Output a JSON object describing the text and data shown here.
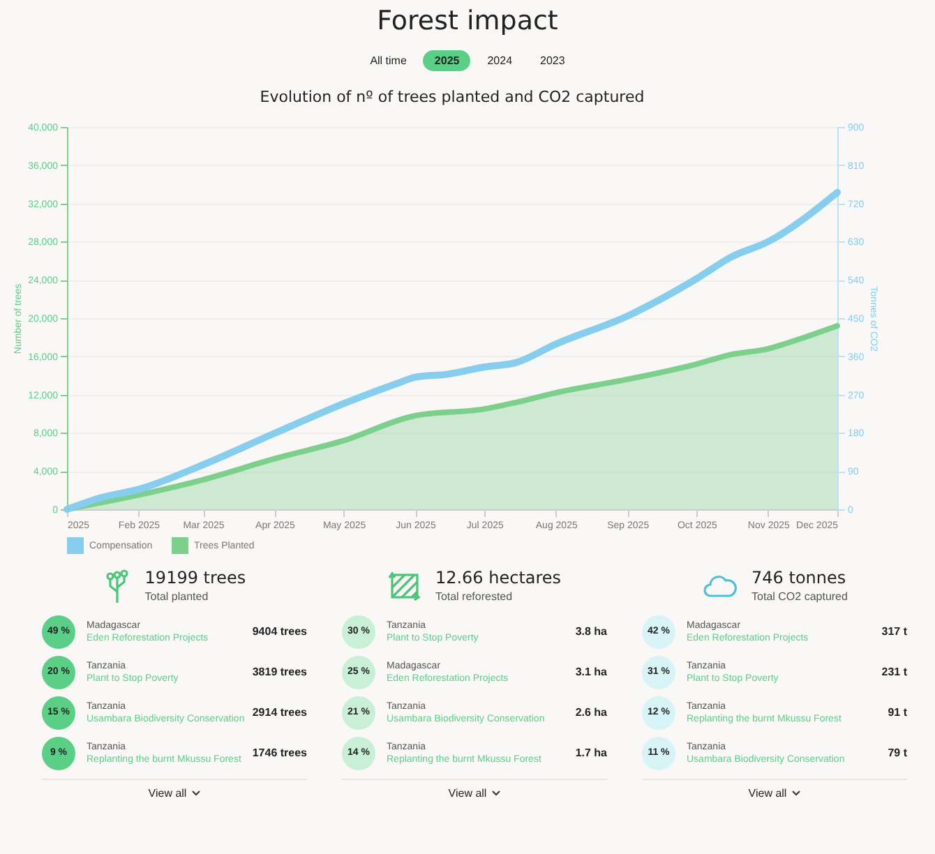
{
  "chart_data": [
    {
      "type": "other",
      "title": "Forest impact",
      "annotations": [
        "All time",
        "2025",
        "2024",
        "2023"
      ]
    },
    {
      "type": "line",
      "title": "Evolution of nº of trees planted and CO2 captured",
      "ylabel": "Number of trees",
      "y2label": "Tonnes of CO2",
      "xlim": [
        "2025-01-01",
        "2025-12-01"
      ],
      "xticks": [
        {
          "value": "2025-01",
          "label": "2025"
        },
        {
          "value": "2025-02",
          "label": "Feb 2025"
        },
        {
          "value": "2025-03",
          "label": "Mar 2025"
        },
        {
          "value": "2025-04",
          "label": "Apr 2025"
        },
        {
          "value": "2025-05",
          "label": "May 2025"
        },
        {
          "value": "2025-06",
          "label": "Jun 2025"
        },
        {
          "value": "2025-07",
          "label": "Jul 2025"
        },
        {
          "value": "2025-08",
          "label": "Aug 2025"
        },
        {
          "value": "2025-09",
          "label": "Sep 2025"
        },
        {
          "value": "2025-10",
          "label": "Oct 2025"
        },
        {
          "value": "2025-11",
          "label": "Nov 2025"
        },
        {
          "value": "2025-12",
          "label": "Dec 2025"
        }
      ],
      "ylim": [
        0,
        40000
      ],
      "yticks": [
        0,
        {
          "value": 4000,
          "label": "4,000"
        },
        {
          "value": 8000,
          "label": "8,000"
        },
        {
          "value": 12000,
          "label": "12,000"
        },
        {
          "value": 16000,
          "label": "16,000"
        },
        {
          "value": 20000,
          "label": "20,000"
        },
        {
          "value": 24000,
          "label": "24,000"
        },
        {
          "value": 28000,
          "label": "28,000"
        },
        {
          "value": 32000,
          "label": "32,000"
        },
        {
          "value": 36000,
          "label": "36,000"
        },
        {
          "value": 40000,
          "label": "40,000"
        }
      ],
      "y2lim": [
        0,
        900
      ],
      "y2ticks": [
        0,
        90,
        180,
        270,
        360,
        450,
        540,
        630,
        720,
        810,
        900
      ],
      "grid": "y",
      "legend": "bottom",
      "series": [
        {
          "name": "Compensation",
          "type": "line",
          "axis": "y2",
          "color": "#86cdee",
          "x": [
            "2025-01-01",
            "2025-01-16",
            "2025-02-01",
            "2025-03-01",
            "2025-04-01",
            "2025-05-01",
            "2025-05-24",
            "2025-06-01",
            "2025-06-15",
            "2025-07-01",
            "2025-07-15",
            "2025-08-01",
            "2025-09-01",
            "2025-10-01",
            "2025-10-16",
            "2025-11-01",
            "2025-12-01"
          ],
          "values": [
            0,
            28,
            47,
            105,
            179,
            249,
            296,
            311,
            318,
            335,
            346,
            389,
            455,
            543,
            594,
            630,
            746
          ]
        },
        {
          "name": "Trees Planted",
          "type": "area",
          "color": "#7dcf8c",
          "x": [
            "2025-01-01",
            "2025-02-01",
            "2025-03-01",
            "2025-04-01",
            "2025-05-01",
            "2025-06-01",
            "2025-07-01",
            "2025-07-15",
            "2025-08-01",
            "2025-09-01",
            "2025-10-01",
            "2025-10-16",
            "2025-11-01",
            "2025-11-08",
            "2025-12-01"
          ],
          "values": [
            0,
            1500,
            3100,
            5300,
            7200,
            9800,
            10500,
            11200,
            12200,
            13600,
            15200,
            16200,
            16800,
            17300,
            19199
          ]
        }
      ]
    },
    {
      "type": "other",
      "title": "19199 trees",
      "subtitle": "Total planted",
      "colors": [
        "#5ccf87",
        "#5ccf87",
        "#5ccf87",
        "#5ccf87"
      ],
      "annotations": [
        "49 %",
        "Madagascar",
        "Eden Reforestation Projects",
        "9404 trees",
        "20 %",
        "Tanzania",
        "Plant to Stop Poverty",
        "3819 trees",
        "15 %",
        "Tanzania",
        "Usambara Biodiversity Conservation",
        "2914 trees",
        "9 %",
        "Tanzania",
        "Replanting the burnt Mkussu Forest",
        "1746 trees",
        "View all"
      ]
    },
    {
      "type": "other",
      "title": "12.66 hectares",
      "subtitle": "Total reforested",
      "colors": [
        "#c9efd6",
        "#c9efd6",
        "#c9efd6",
        "#c9efd6"
      ],
      "annotations": [
        "30 %",
        "Tanzania",
        "Plant to Stop Poverty",
        "3.8 ha",
        "25 %",
        "Madagascar",
        "Eden Reforestation Projects",
        "3.1 ha",
        "21 %",
        "Tanzania",
        "Usambara Biodiversity Conservation",
        "2.6 ha",
        "14 %",
        "Tanzania",
        "Replanting the burnt Mkussu Forest",
        "1.7 ha",
        "View all"
      ]
    },
    {
      "type": "other",
      "title": "746 tonnes",
      "subtitle": "Total CO2 captured",
      "colors": [
        "#d8f4f7",
        "#d8f4f7",
        "#d8f4f7",
        "#d8f4f7"
      ],
      "annotations": [
        "42 %",
        "Madagascar",
        "Eden Reforestation Projects",
        "317 t",
        "31 %",
        "Tanzania",
        "Plant to Stop Poverty",
        "231 t",
        "12 %",
        "Tanzania",
        "Replanting the burnt Mkussu Forest",
        "91 t",
        "11 %",
        "Tanzania",
        "Usambara Biodiversity Conservation",
        "79 t",
        "View all"
      ]
    }
  ]
}
